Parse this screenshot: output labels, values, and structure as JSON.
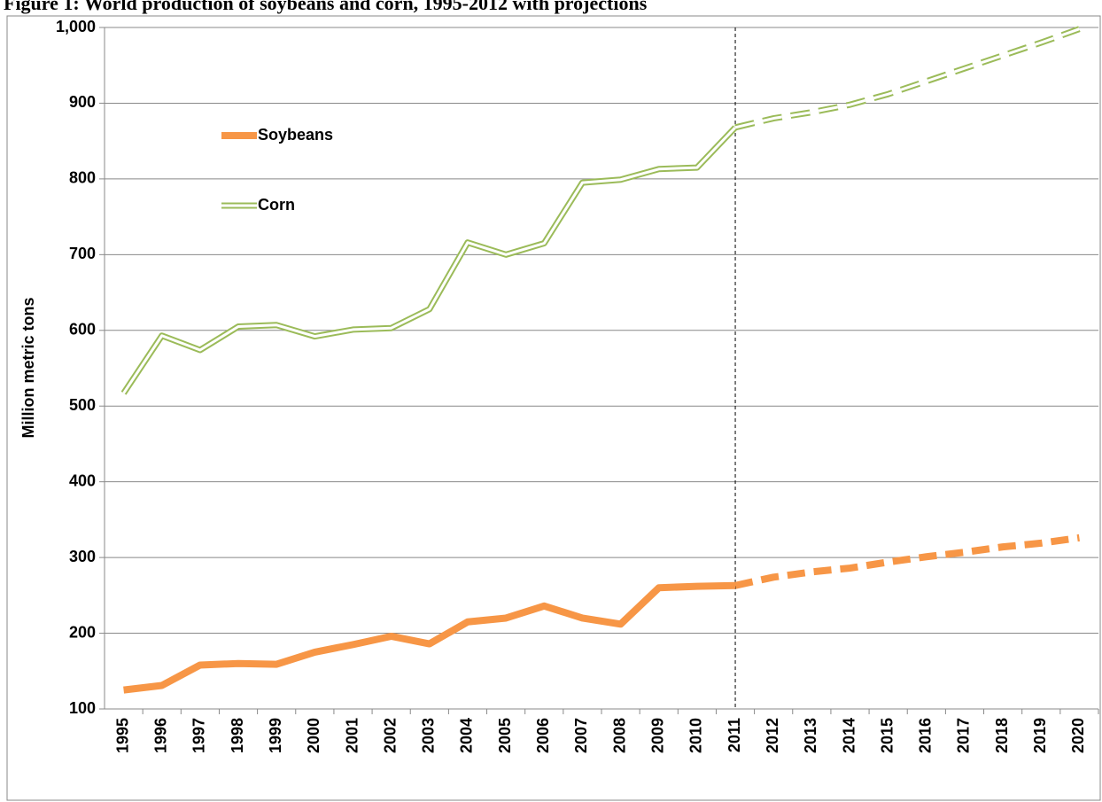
{
  "chart_data": {
    "type": "line",
    "title": "Figure 1: World production of soybeans and corn, 1995-2012 with projections",
    "y_label": "Million metric tons",
    "categories": [
      "1995",
      "1996",
      "1997",
      "1998",
      "1999",
      "2000",
      "2001",
      "2002",
      "2003",
      "2004",
      "2005",
      "2006",
      "2007",
      "2008",
      "2009",
      "2010",
      "2011",
      "2012",
      "2013",
      "2014",
      "2015",
      "2016",
      "2017",
      "2018",
      "2019",
      "2020"
    ],
    "projection_from": "2011",
    "series": [
      {
        "name": "Soybeans",
        "color": "#f79646",
        "style": "thick",
        "values": [
          125,
          131,
          158,
          160,
          159,
          175,
          185,
          196,
          186,
          215,
          220,
          236,
          220,
          212,
          260,
          262,
          263,
          274,
          281,
          286,
          294,
          301,
          307,
          314,
          319,
          326
        ]
      },
      {
        "name": "Corn",
        "color": "#9bbb59",
        "style": "double",
        "values": [
          517,
          593,
          574,
          605,
          607,
          592,
          601,
          603,
          628,
          716,
          700,
          715,
          795,
          799,
          813,
          815,
          868,
          880,
          888,
          898,
          912,
          929,
          946,
          963,
          980,
          998
        ]
      }
    ],
    "ylim": [
      100,
      1000
    ],
    "yticks": [
      100,
      200,
      300,
      400,
      500,
      600,
      700,
      800,
      900,
      {
        "value": 1000,
        "label": "1,000"
      }
    ],
    "grid": true
  }
}
